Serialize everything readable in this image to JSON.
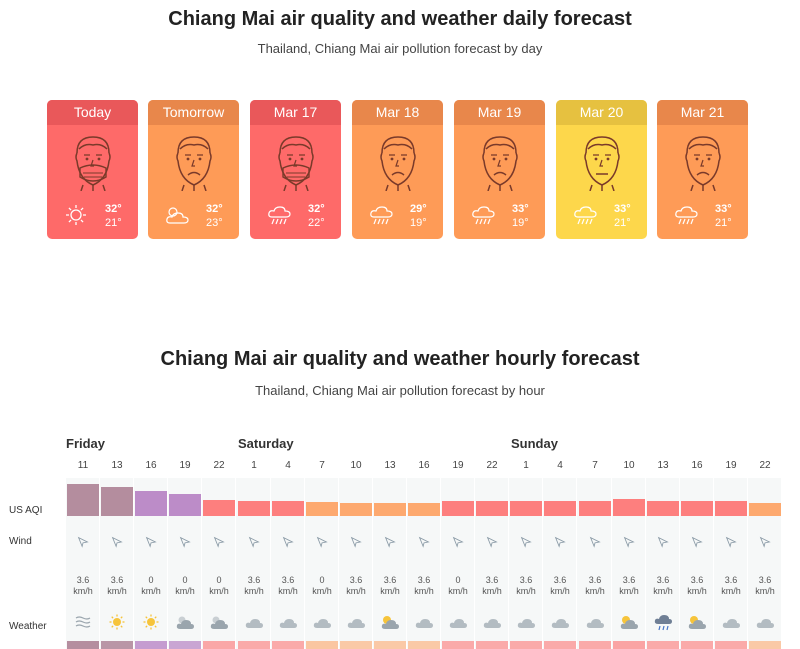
{
  "daily": {
    "title": "Chiang Mai air quality and weather daily forecast",
    "subtitle": "Thailand, Chiang Mai air pollution forecast by day",
    "cards": [
      {
        "label": "Today",
        "high": "32°",
        "low": "21°",
        "face": "mask-face-icon",
        "weather": "sun-icon",
        "color": "#fe6a69",
        "head": "#e9585a"
      },
      {
        "label": "Tomorrow",
        "high": "32°",
        "low": "23°",
        "face": "sad-face-icon",
        "weather": "partly-cloudy-icon",
        "color": "#fe9b57",
        "head": "#e8874b"
      },
      {
        "label": "Mar 17",
        "high": "32°",
        "low": "22°",
        "face": "mask-face-icon",
        "weather": "rain-cloud-icon",
        "color": "#fe6a69",
        "head": "#e9585a"
      },
      {
        "label": "Mar 18",
        "high": "29°",
        "low": "19°",
        "face": "sad-face-icon",
        "weather": "rain-cloud-icon",
        "color": "#fe9b57",
        "head": "#e8874b"
      },
      {
        "label": "Mar 19",
        "high": "33°",
        "low": "19°",
        "face": "sad-face-icon",
        "weather": "rain-cloud-icon",
        "color": "#fe9b57",
        "head": "#e8874b"
      },
      {
        "label": "Mar 20",
        "high": "33°",
        "low": "21°",
        "face": "neutral-face-icon",
        "weather": "rain-cloud-icon",
        "color": "#fdd74b",
        "head": "#e6c140"
      },
      {
        "label": "Mar 21",
        "high": "33°",
        "low": "21°",
        "face": "sad-face-icon",
        "weather": "rain-cloud-icon",
        "color": "#fe9b57",
        "head": "#e8874b"
      }
    ]
  },
  "hourly": {
    "title": "Chiang Mai air quality and weather hourly forecast",
    "subtitle": "Thailand, Chiang Mai air pollution forecast by hour",
    "days": [
      "Friday",
      "Saturday",
      "Sunday"
    ],
    "row_labels": {
      "aqi": "US AQI",
      "wind": "Wind",
      "weather": "Weather"
    },
    "hours": [
      {
        "h": "11",
        "aqi": "#a87a8e",
        "aqi_level": 0.9,
        "wind": "0.6",
        "speed": "3.6",
        "unit": "km/h",
        "wx": "haze-icon"
      },
      {
        "h": "13",
        "aqi": "#a87a8e",
        "aqi_level": 0.8,
        "wind": "0.6",
        "speed": "3.6",
        "unit": "km/h",
        "wx": "sun-icon"
      },
      {
        "h": "16",
        "aqi": "#b179c0",
        "aqi_level": 0.7,
        "wind": "0.55",
        "speed": "0",
        "unit": "km/h",
        "wx": "sun-icon"
      },
      {
        "h": "19",
        "aqi": "#b179c0",
        "aqi_level": 0.6,
        "wind": "0.55",
        "speed": "0",
        "unit": "km/h",
        "wx": "partly-cloudy-icon"
      },
      {
        "h": "22",
        "aqi": "#fe6a69",
        "aqi_level": 0.45,
        "wind": "0.5",
        "speed": "0",
        "unit": "km/h",
        "wx": "partly-cloudy-icon"
      },
      {
        "h": "1",
        "aqi": "#fe6a69",
        "aqi_level": 0.42,
        "wind": "0.6",
        "speed": "3.6",
        "unit": "km/h",
        "wx": "cloud-icon"
      },
      {
        "h": "4",
        "aqi": "#fe6a69",
        "aqi_level": 0.42,
        "wind": "0.6",
        "speed": "3.6",
        "unit": "km/h",
        "wx": "cloud-icon"
      },
      {
        "h": "7",
        "aqi": "#fe9b57",
        "aqi_level": 0.4,
        "wind": "0.6",
        "speed": "0",
        "unit": "km/h",
        "wx": "cloud-icon"
      },
      {
        "h": "10",
        "aqi": "#fe9b57",
        "aqi_level": 0.35,
        "wind": "0.6",
        "speed": "3.6",
        "unit": "km/h",
        "wx": "cloud-icon"
      },
      {
        "h": "13",
        "aqi": "#fe9b57",
        "aqi_level": 0.35,
        "wind": "0.6",
        "speed": "3.6",
        "unit": "km/h",
        "wx": "partly-sunny-icon"
      },
      {
        "h": "16",
        "aqi": "#fe9b57",
        "aqi_level": 0.35,
        "wind": "0.6",
        "speed": "3.6",
        "unit": "km/h",
        "wx": "cloud-icon"
      },
      {
        "h": "19",
        "aqi": "#fe6a69",
        "aqi_level": 0.42,
        "wind": "0.55",
        "speed": "0",
        "unit": "km/h",
        "wx": "cloud-icon"
      },
      {
        "h": "22",
        "aqi": "#fe6a69",
        "aqi_level": 0.42,
        "wind": "0.6",
        "speed": "3.6",
        "unit": "km/h",
        "wx": "cloud-icon"
      },
      {
        "h": "1",
        "aqi": "#fe6a69",
        "aqi_level": 0.42,
        "wind": "0.6",
        "speed": "3.6",
        "unit": "km/h",
        "wx": "cloud-icon"
      },
      {
        "h": "4",
        "aqi": "#fe6a69",
        "aqi_level": 0.42,
        "wind": "0.6",
        "speed": "3.6",
        "unit": "km/h",
        "wx": "cloud-icon"
      },
      {
        "h": "7",
        "aqi": "#fe6a69",
        "aqi_level": 0.42,
        "wind": "0.6",
        "speed": "3.6",
        "unit": "km/h",
        "wx": "cloud-icon"
      },
      {
        "h": "10",
        "aqi": "#fe6a69",
        "aqi_level": 0.48,
        "wind": "0.6",
        "speed": "3.6",
        "unit": "km/h",
        "wx": "partly-sunny-icon"
      },
      {
        "h": "13",
        "aqi": "#fe6a69",
        "aqi_level": 0.42,
        "wind": "0.6",
        "speed": "3.6",
        "unit": "km/h",
        "wx": "rain-cloud-icon"
      },
      {
        "h": "16",
        "aqi": "#fe6a69",
        "aqi_level": 0.42,
        "wind": "0.6",
        "speed": "3.6",
        "unit": "km/h",
        "wx": "partly-sunny-icon"
      },
      {
        "h": "19",
        "aqi": "#fe6a69",
        "aqi_level": 0.42,
        "wind": "0.6",
        "speed": "3.6",
        "unit": "km/h",
        "wx": "cloud-icon"
      },
      {
        "h": "22",
        "aqi": "#fe9b57",
        "aqi_level": 0.35,
        "wind": "0.6",
        "speed": "3.6",
        "unit": "km/h",
        "wx": "cloud-icon"
      }
    ]
  }
}
